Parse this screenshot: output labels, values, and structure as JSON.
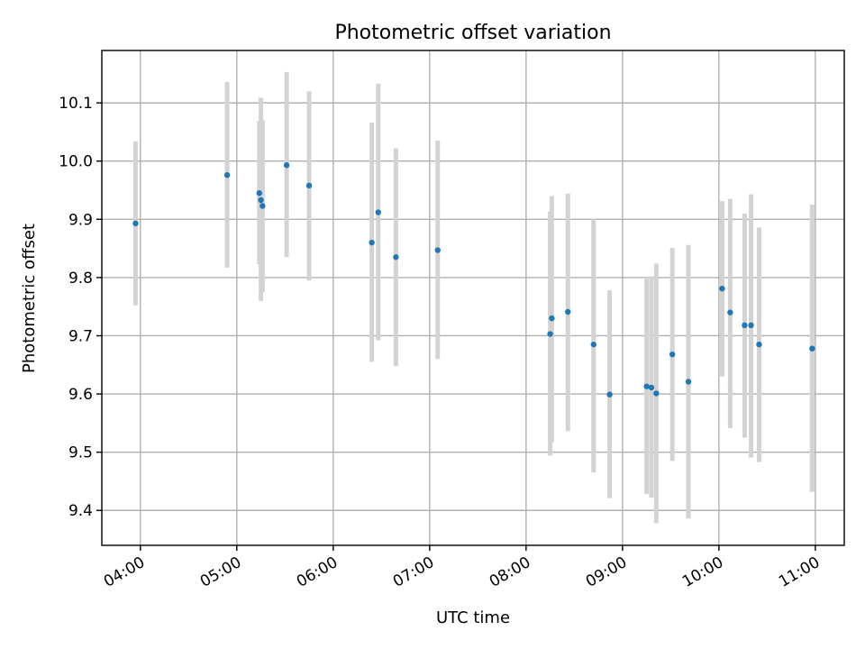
{
  "chart_data": {
    "type": "scatter",
    "title": "Photometric offset variation",
    "xlabel": "UTC time",
    "ylabel": "Photometric offset",
    "x_tick_labels": [
      "04:00",
      "05:00",
      "06:00",
      "07:00",
      "08:00",
      "09:00",
      "10:00",
      "11:00"
    ],
    "y_tick_labels": [
      "9.4",
      "9.5",
      "9.6",
      "9.7",
      "9.8",
      "9.9",
      "10.0",
      "10.1"
    ],
    "xlim": [
      "03:36",
      "11:18"
    ],
    "ylim": [
      9.34,
      10.19
    ],
    "grid": true,
    "colors": {
      "point": "#1f77b4",
      "errorbar": "#d3d3d3"
    },
    "points": [
      {
        "x": "03:57",
        "y": 9.893,
        "ylo": 9.752,
        "yhi": 10.034
      },
      {
        "x": "04:54",
        "y": 9.976,
        "ylo": 9.817,
        "yhi": 10.136
      },
      {
        "x": "05:14",
        "y": 9.945,
        "ylo": 9.823,
        "yhi": 10.069
      },
      {
        "x": "05:15",
        "y": 9.933,
        "ylo": 9.76,
        "yhi": 10.109
      },
      {
        "x": "05:16",
        "y": 9.923,
        "ylo": 9.775,
        "yhi": 10.07
      },
      {
        "x": "05:31",
        "y": 9.993,
        "ylo": 9.835,
        "yhi": 10.153
      },
      {
        "x": "05:45",
        "y": 9.958,
        "ylo": 9.795,
        "yhi": 10.12
      },
      {
        "x": "06:24",
        "y": 9.86,
        "ylo": 9.655,
        "yhi": 10.066
      },
      {
        "x": "06:28",
        "y": 9.912,
        "ylo": 9.692,
        "yhi": 10.133
      },
      {
        "x": "06:39",
        "y": 9.835,
        "ylo": 9.648,
        "yhi": 10.022
      },
      {
        "x": "07:05",
        "y": 9.847,
        "ylo": 9.66,
        "yhi": 10.035
      },
      {
        "x": "08:15",
        "y": 9.703,
        "ylo": 9.494,
        "yhi": 9.913
      },
      {
        "x": "08:16",
        "y": 9.73,
        "ylo": 9.517,
        "yhi": 9.94
      },
      {
        "x": "08:26",
        "y": 9.741,
        "ylo": 9.536,
        "yhi": 9.944
      },
      {
        "x": "08:42",
        "y": 9.685,
        "ylo": 9.465,
        "yhi": 9.9
      },
      {
        "x": "08:52",
        "y": 9.599,
        "ylo": 9.421,
        "yhi": 9.778
      },
      {
        "x": "09:15",
        "y": 9.613,
        "ylo": 9.428,
        "yhi": 9.8
      },
      {
        "x": "09:18",
        "y": 9.611,
        "ylo": 9.422,
        "yhi": 9.802
      },
      {
        "x": "09:21",
        "y": 9.601,
        "ylo": 9.378,
        "yhi": 9.824
      },
      {
        "x": "09:31",
        "y": 9.668,
        "ylo": 9.485,
        "yhi": 9.851
      },
      {
        "x": "09:41",
        "y": 9.621,
        "ylo": 9.386,
        "yhi": 9.856
      },
      {
        "x": "10:02",
        "y": 9.781,
        "ylo": 9.63,
        "yhi": 9.931
      },
      {
        "x": "10:07",
        "y": 9.74,
        "ylo": 9.541,
        "yhi": 9.935
      },
      {
        "x": "10:16",
        "y": 9.718,
        "ylo": 9.525,
        "yhi": 9.91
      },
      {
        "x": "10:20",
        "y": 9.718,
        "ylo": 9.491,
        "yhi": 9.943
      },
      {
        "x": "10:25",
        "y": 9.685,
        "ylo": 9.483,
        "yhi": 9.886
      },
      {
        "x": "10:58",
        "y": 9.678,
        "ylo": 9.432,
        "yhi": 9.925
      }
    ]
  }
}
